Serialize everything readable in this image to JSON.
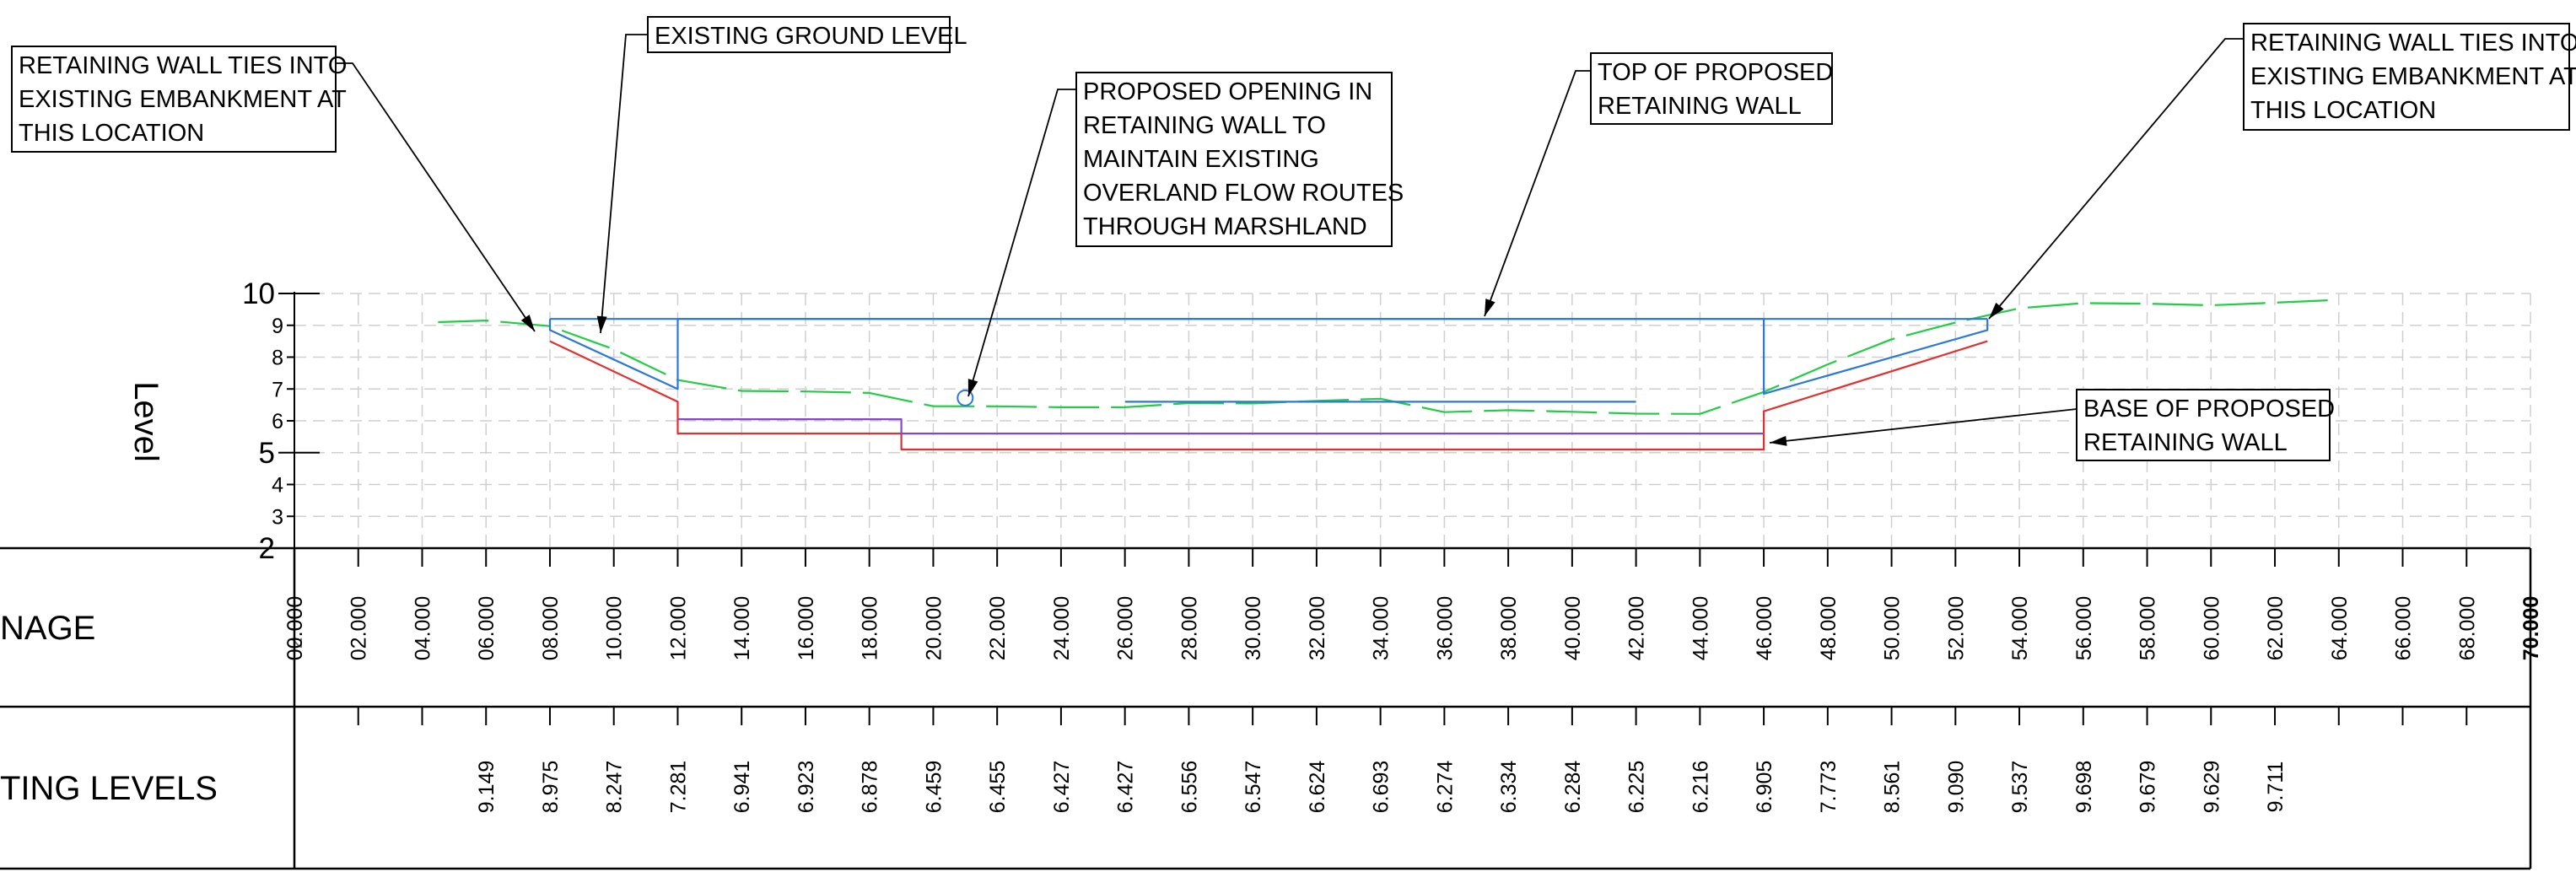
{
  "chart_data": {
    "type": "line",
    "ylabel": "Level",
    "ylim": [
      2,
      10
    ],
    "yticks": [
      "2",
      "3",
      "4",
      "5",
      "6",
      "7",
      "8",
      "9",
      "10"
    ],
    "xlim": [
      0,
      70
    ],
    "chainage_labels": [
      "00.000",
      "02.000",
      "04.000",
      "06.000",
      "08.000",
      "10.000",
      "12.000",
      "14.000",
      "16.000",
      "18.000",
      "20.000",
      "22.000",
      "24.000",
      "26.000",
      "28.000",
      "30.000",
      "32.000",
      "34.000",
      "36.000",
      "38.000",
      "40.000",
      "42.000",
      "44.000",
      "46.000",
      "48.000",
      "50.000",
      "52.000",
      "54.000",
      "56.000",
      "58.000",
      "60.000",
      "62.000",
      "64.000",
      "66.000",
      "68.000",
      "70.000"
    ],
    "existing_levels": {
      "x": [
        6,
        8,
        10,
        12,
        14,
        16,
        18,
        20,
        22,
        24,
        26,
        28,
        30,
        32,
        34,
        36,
        38,
        40,
        42,
        44,
        46,
        48,
        50,
        52,
        54,
        56,
        58,
        60,
        62
      ],
      "labels": [
        "9.149",
        "8.975",
        "8.247",
        "7.281",
        "6.941",
        "6.923",
        "6.878",
        "6.459",
        "6.455",
        "6.427",
        "6.427",
        "6.556",
        "6.547",
        "6.624",
        "6.693",
        "6.274",
        "6.334",
        "6.284",
        "6.225",
        "6.216",
        "6.905",
        "7.773",
        "8.561",
        "9.090",
        "9.537",
        "9.698",
        "9.679",
        "9.629",
        "9.711"
      ]
    },
    "series": [
      {
        "color": "#22cc44",
        "x": [
          4.5,
          6,
          8,
          10,
          12,
          14,
          16,
          18,
          20,
          22,
          24,
          26,
          28,
          30,
          32,
          34,
          36,
          38,
          40,
          42,
          44,
          46,
          48,
          50,
          52,
          54,
          56,
          58,
          60,
          62,
          64
        ],
        "y": [
          9.1,
          9.149,
          8.975,
          8.247,
          7.281,
          6.941,
          6.923,
          6.878,
          6.459,
          6.455,
          6.427,
          6.427,
          6.556,
          6.547,
          6.624,
          6.693,
          6.274,
          6.334,
          6.284,
          6.225,
          6.216,
          6.905,
          7.773,
          8.561,
          9.09,
          9.537,
          9.698,
          9.679,
          9.629,
          9.711,
          9.8
        ]
      },
      {
        "color": "#2a78d8",
        "x": [
          8,
          8,
          12,
          12,
          19,
          19,
          46,
          46,
          53,
          53
        ],
        "y": [
          9.2,
          8.85,
          7.0,
          9.2,
          9.2,
          9.2,
          9.2,
          6.85,
          8.85,
          9.2
        ]
      },
      {
        "color": "#2a78d8",
        "x": [
          8,
          53
        ],
        "y": [
          9.2,
          9.2
        ]
      },
      {
        "color": "#2a78d8",
        "x": [
          26,
          42
        ],
        "y": [
          6.6,
          6.6
        ]
      },
      {
        "color": "#e03030",
        "x": [
          8,
          12,
          12,
          19,
          19,
          46,
          46,
          53,
          53
        ],
        "y": [
          8.5,
          6.6,
          5.6,
          5.6,
          5.1,
          5.1,
          6.3,
          8.5,
          8.5
        ]
      },
      {
        "color": "#8844cc",
        "x": [
          12,
          19,
          19,
          46
        ],
        "y": [
          6.05,
          6.05,
          5.6,
          5.6
        ]
      }
    ],
    "grid": true
  },
  "rows": {
    "chainage_title": "NAGE",
    "levels_title": "TING LEVELS"
  },
  "callouts": {
    "ties_left": [
      "RETAINING WALL TIES INTO",
      "EXISTING EMBANKMENT AT",
      "THIS LOCATION"
    ],
    "ground": [
      "EXISTING GROUND LEVEL"
    ],
    "opening": [
      "PROPOSED OPENING IN",
      "RETAINING WALL TO",
      "MAINTAIN EXISTING",
      "OVERLAND FLOW ROUTES",
      "THROUGH MARSHLAND"
    ],
    "top_wall": [
      "TOP OF PROPOSED",
      "RETAINING WALL"
    ],
    "ties_right": [
      "RETAINING WALL TIES INTO",
      "EXISTING EMBANKMENT AT",
      "THIS LOCATION"
    ],
    "base_wall": [
      "BASE OF PROPOSED",
      "RETAINING WALL"
    ]
  },
  "colors": {
    "ground": "#22cc44",
    "wall_top": "#2a78d8",
    "wall_base": "#e03030",
    "leader": "#000000",
    "grid": "#cfcfcf"
  }
}
